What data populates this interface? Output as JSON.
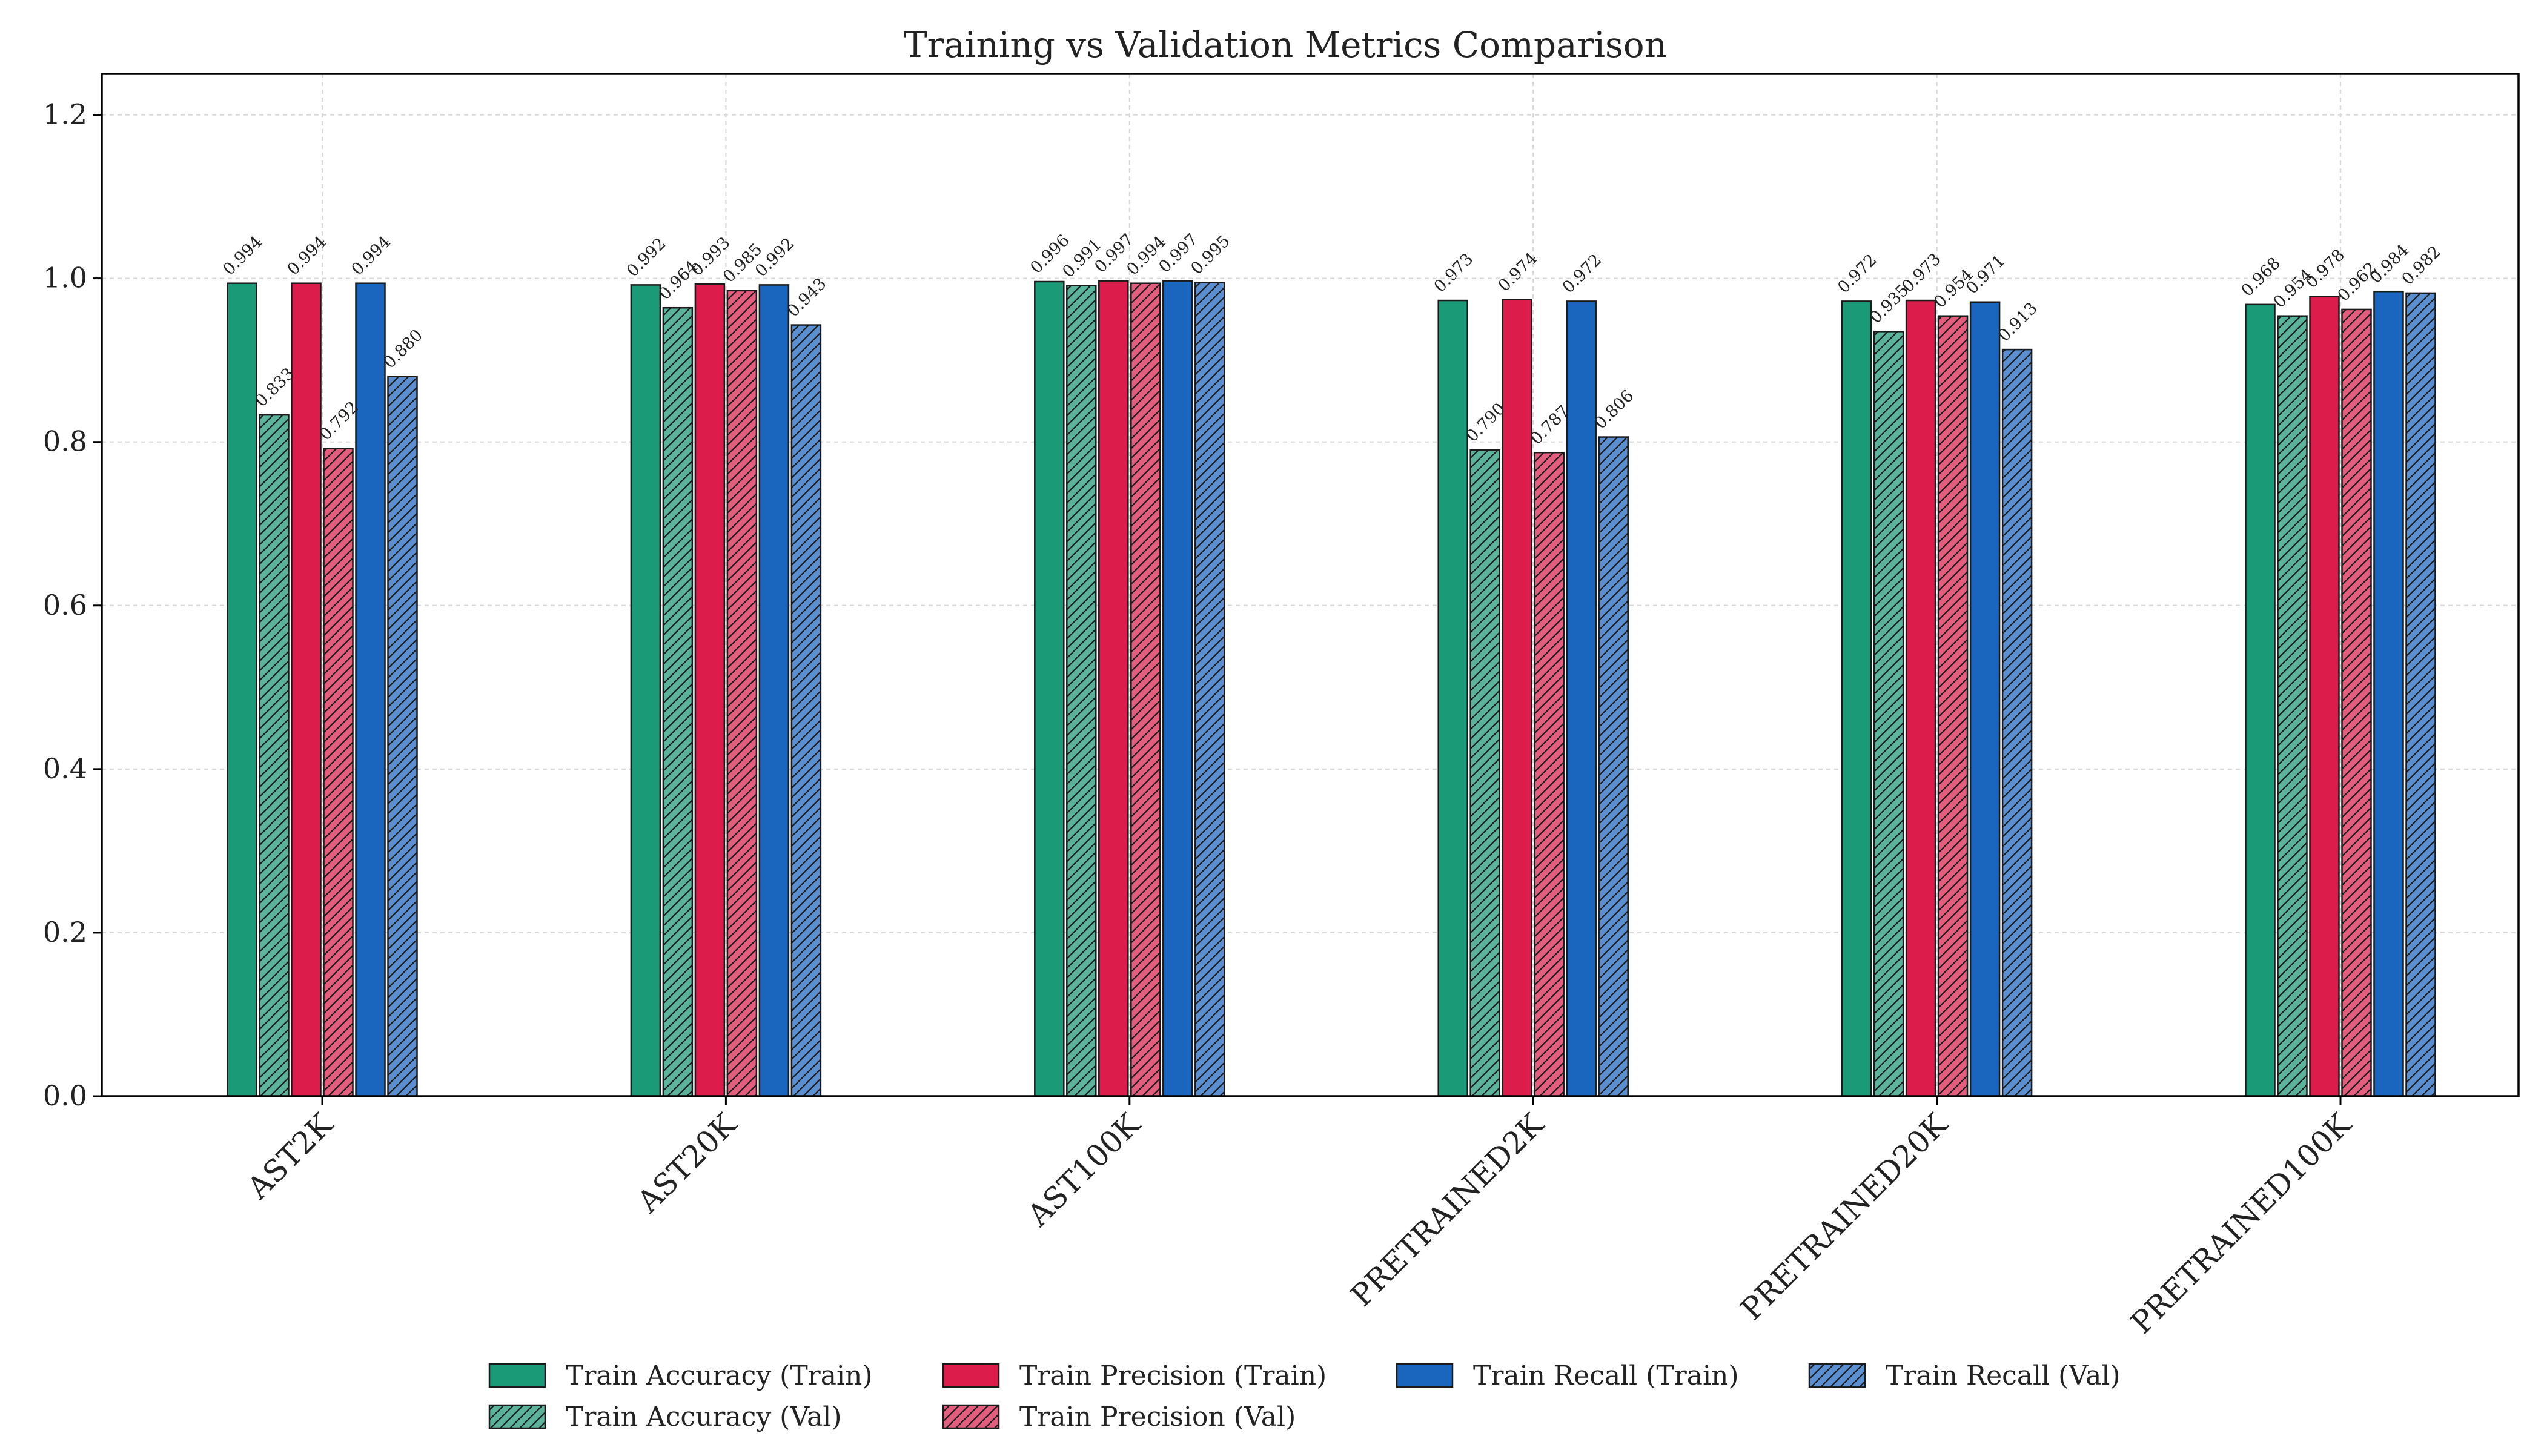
{
  "chart_data": {
    "type": "bar",
    "title": "Training vs Validation Metrics Comparison",
    "xlabel": "",
    "ylabel": "",
    "ylim": [
      0,
      1.25
    ],
    "yticks": [
      0.0,
      0.2,
      0.4,
      0.6,
      0.8,
      1.0,
      1.2
    ],
    "ytick_labels": [
      "0.0",
      "0.2",
      "0.4",
      "0.6",
      "0.8",
      "1.0",
      "1.2"
    ],
    "grid": true,
    "legend_position": "bottom-center",
    "categories": [
      "AST2K",
      "AST20K",
      "AST100K",
      "PRETRAINED2K",
      "PRETRAINED20K",
      "PRETRAINED100K"
    ],
    "series": [
      {
        "name": "Train Accuracy (Train)",
        "color": "#1a9a76",
        "hatch": false,
        "values": [
          0.994,
          0.992,
          0.996,
          0.973,
          0.972,
          0.968
        ],
        "labels": [
          "0.994",
          "0.992",
          "0.996",
          "0.973",
          "0.972",
          "0.968"
        ]
      },
      {
        "name": "Train Accuracy (Val)",
        "color": "#5cb39c",
        "hatch": true,
        "values": [
          0.833,
          0.964,
          0.991,
          0.79,
          0.935,
          0.954
        ],
        "labels": [
          "0.833",
          "0.964",
          "0.991",
          "0.790",
          "0.935",
          "0.954"
        ]
      },
      {
        "name": "Train Precision (Train)",
        "color": "#dc1c4b",
        "hatch": false,
        "values": [
          0.994,
          0.993,
          0.997,
          0.974,
          0.973,
          0.978
        ],
        "labels": [
          "0.994",
          "0.993",
          "0.997",
          "0.974",
          "0.973",
          "0.978"
        ]
      },
      {
        "name": "Train Precision (Val)",
        "color": "#e35d7c",
        "hatch": true,
        "values": [
          0.792,
          0.985,
          0.994,
          0.787,
          0.954,
          0.962
        ],
        "labels": [
          "0.792",
          "0.985",
          "0.994",
          "0.787",
          "0.954",
          "0.962"
        ]
      },
      {
        "name": "Train Recall (Train)",
        "color": "#1a65bd",
        "hatch": false,
        "values": [
          0.994,
          0.992,
          0.997,
          0.972,
          0.971,
          0.984
        ],
        "labels": [
          "0.994",
          "0.992",
          "0.997",
          "0.972",
          "0.971",
          "0.984"
        ]
      },
      {
        "name": "Train Recall (Val)",
        "color": "#5b8fcf",
        "hatch": true,
        "values": [
          0.88,
          0.943,
          0.995,
          0.806,
          0.913,
          0.982
        ],
        "labels": [
          "0.880",
          "0.943",
          "0.995",
          "0.806",
          "0.913",
          "0.982"
        ]
      }
    ]
  }
}
